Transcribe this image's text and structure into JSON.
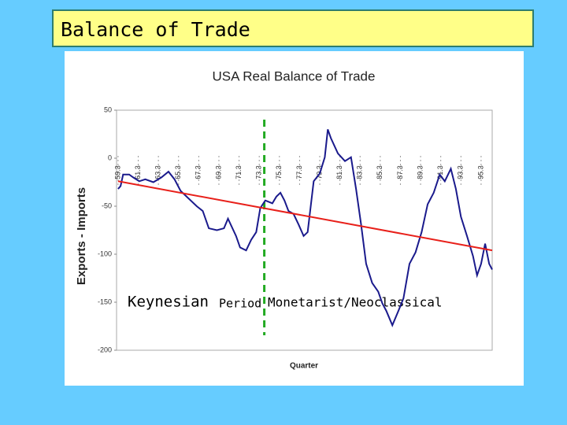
{
  "slide": {
    "title": "Balance of Trade"
  },
  "chart_data": {
    "type": "line",
    "title": "USA Real Balance of Trade",
    "y_label": "Exports - Imports",
    "x_label": "Quarter",
    "annotations": [
      "Keynesian",
      "Period",
      "Monetarist/Neoclassical"
    ],
    "divider_x": 74,
    "xlim": [
      59.35,
      96.6
    ],
    "ylim": [
      -200,
      50
    ],
    "yticks": [
      -200,
      -150,
      -100,
      -50,
      0,
      50
    ],
    "xticks": [
      {
        "value": 59.5,
        "label": "59.3"
      },
      {
        "value": 61.5,
        "label": "61.3"
      },
      {
        "value": 63.5,
        "label": "63.3"
      },
      {
        "value": 65.5,
        "label": "65.3"
      },
      {
        "value": 67.5,
        "label": "67.3"
      },
      {
        "value": 69.5,
        "label": "69.3"
      },
      {
        "value": 71.5,
        "label": "71.3"
      },
      {
        "value": 73.5,
        "label": "73.3"
      },
      {
        "value": 75.5,
        "label": "75.3"
      },
      {
        "value": 77.5,
        "label": "77.3"
      },
      {
        "value": 79.5,
        "label": "79.3"
      },
      {
        "value": 81.5,
        "label": "81.3"
      },
      {
        "value": 83.5,
        "label": "83.3"
      },
      {
        "value": 85.5,
        "label": "85.3"
      },
      {
        "value": 87.5,
        "label": "87.3"
      },
      {
        "value": 89.5,
        "label": "89.3"
      },
      {
        "value": 91.5,
        "label": "91.3"
      },
      {
        "value": 93.5,
        "label": "93.3"
      },
      {
        "value": 95.5,
        "label": "95.3"
      }
    ],
    "series": [
      {
        "color": "#1a1a8c",
        "x": [
          59.5,
          59.75,
          60,
          60.6,
          61,
          61.6,
          62.2,
          63,
          63.8,
          64.5,
          65.1,
          65.7,
          66.5,
          67.3,
          67.9,
          68.5,
          69.3,
          70,
          70.4,
          71.2,
          71.6,
          72.2,
          72.7,
          73.2,
          73.6,
          74.1,
          74.8,
          75.2,
          75.6,
          76,
          76.4,
          76.9,
          77.4,
          77.9,
          78.3,
          78.9,
          79.5,
          80,
          80.3,
          80.6,
          81.3,
          82,
          82.6,
          83.1,
          83.6,
          84.1,
          84.7,
          85.3,
          85.7,
          86.1,
          86.7,
          87.3,
          87.8,
          88.4,
          89,
          89.6,
          90.2,
          90.8,
          91.4,
          91.9,
          92.5,
          93,
          93.5,
          94.1,
          94.7,
          95.1,
          95.5,
          95.9,
          96.3,
          96.6
        ],
        "values": [
          -32,
          -29,
          -17,
          -17,
          -20,
          -24,
          -22,
          -25,
          -20,
          -14,
          -22,
          -34,
          -42,
          -50,
          -55,
          -73,
          -75,
          -73,
          -63,
          -81,
          -93,
          -96,
          -85,
          -77,
          -52,
          -44,
          -47,
          -40,
          -36,
          -44,
          -55,
          -58,
          -69,
          -81,
          -77,
          -24,
          -16,
          1,
          30,
          21,
          5,
          -3,
          1,
          -32,
          -69,
          -110,
          -130,
          -139,
          -151,
          -159,
          -174,
          -159,
          -146,
          -110,
          -98,
          -77,
          -48,
          -36,
          -17,
          -24,
          -11,
          -32,
          -61,
          -81,
          -102,
          -122,
          -110,
          -89,
          -110,
          -116
        ]
      },
      {
        "color": "#e8201a",
        "x": [
          59.5,
          96.6
        ],
        "values": [
          -24,
          -96
        ]
      }
    ]
  }
}
